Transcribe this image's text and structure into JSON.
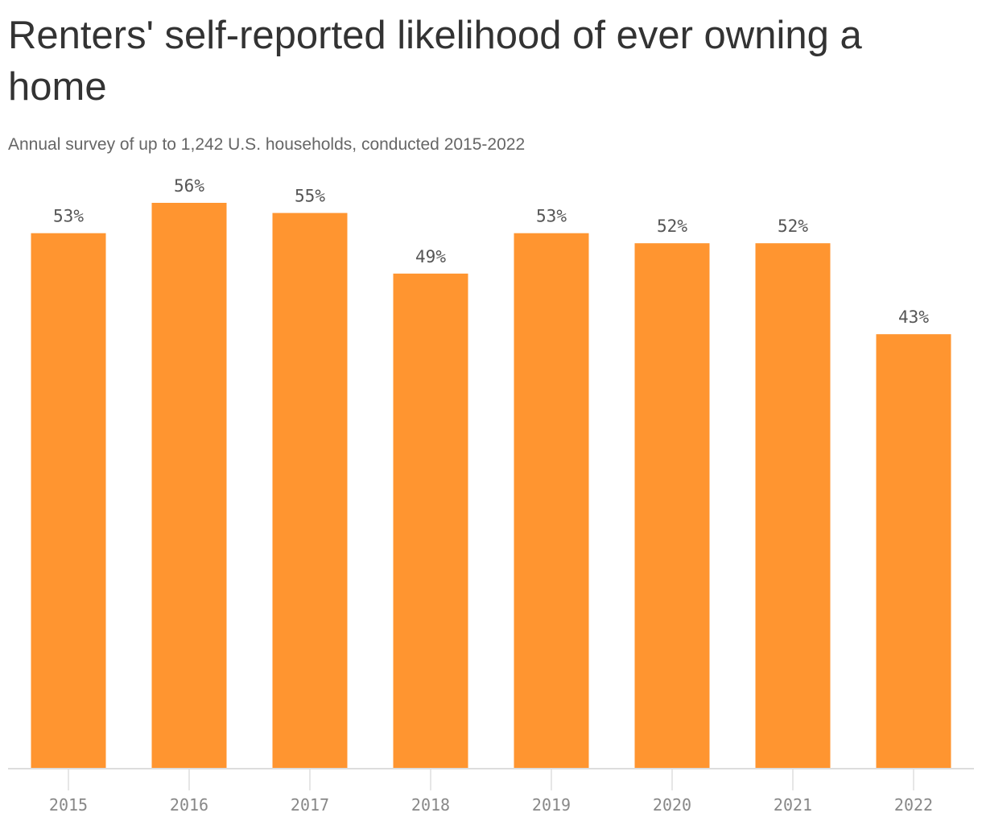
{
  "chart_data": {
    "type": "bar",
    "title": "Renters' self-reported likelihood of ever owning a home",
    "subtitle": "Annual survey of up to 1,242 U.S. households, conducted 2015-2022",
    "categories": [
      "2015",
      "2016",
      "2017",
      "2018",
      "2019",
      "2020",
      "2021",
      "2022"
    ],
    "values": [
      53,
      56,
      55,
      49,
      53,
      52,
      52,
      43
    ],
    "value_labels": [
      "53%",
      "56%",
      "55%",
      "49%",
      "53%",
      "52%",
      "52%",
      "43%"
    ],
    "unit": "%",
    "ylim": [
      0,
      56
    ],
    "grid": false,
    "bar_color": "#ff9530",
    "axis_color": "#dddddd"
  }
}
